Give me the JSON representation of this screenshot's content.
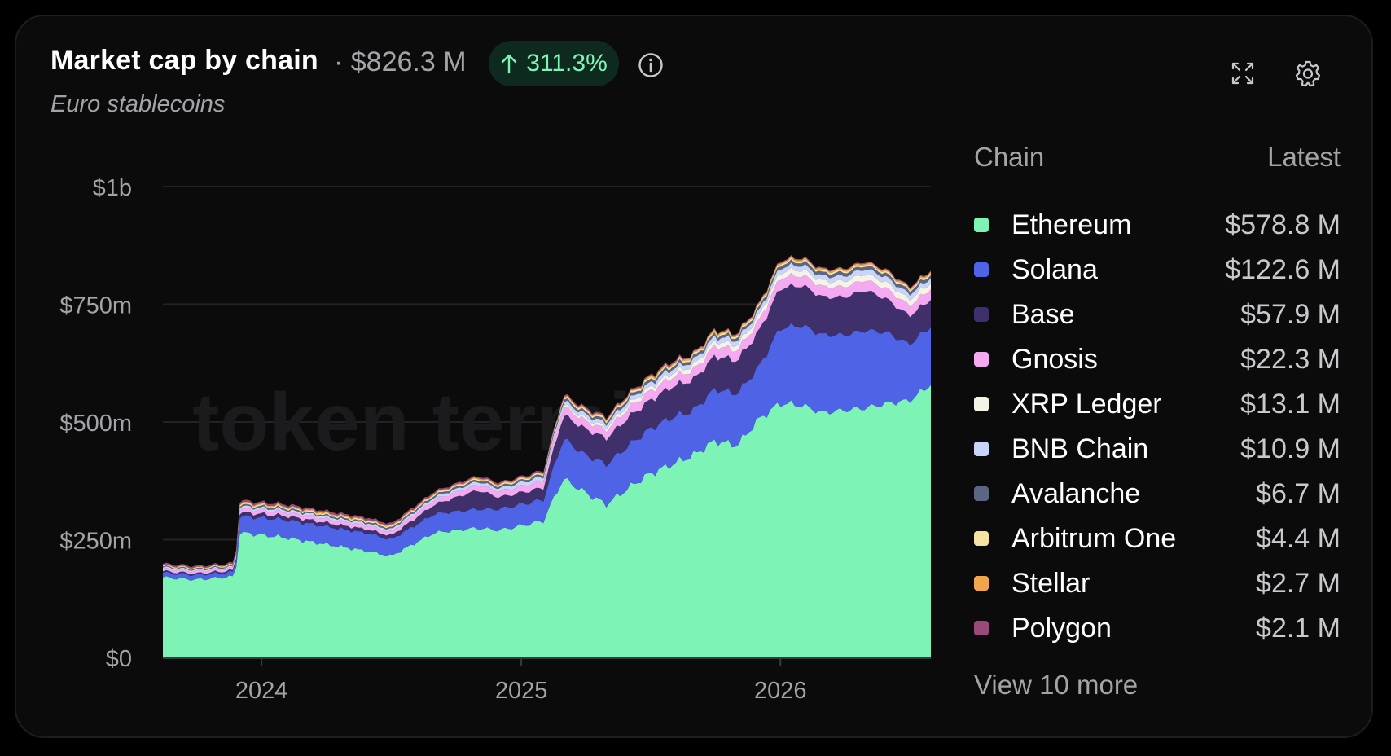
{
  "header": {
    "title": "Market cap by chain",
    "total": "· $826.3 M",
    "change": "311.3%",
    "subtitle": "Euro stablecoins",
    "watermark": "token terminal_"
  },
  "legend": {
    "col_chain": "Chain",
    "col_latest": "Latest",
    "view_more": "View 10 more",
    "items": [
      {
        "label": "Ethereum",
        "value": "$578.8 M",
        "color": "#7df3b6"
      },
      {
        "label": "Solana",
        "value": "$122.6 M",
        "color": "#4e63e6"
      },
      {
        "label": "Base",
        "value": "$57.9 M",
        "color": "#3f2f6b"
      },
      {
        "label": "Gnosis",
        "value": "$22.3 M",
        "color": "#f5a9f0"
      },
      {
        "label": "XRP Ledger",
        "value": "$13.1 M",
        "color": "#f5f2e6"
      },
      {
        "label": "BNB Chain",
        "value": "$10.9 M",
        "color": "#c9d4fa"
      },
      {
        "label": "Avalanche",
        "value": "$6.7 M",
        "color": "#5c6582"
      },
      {
        "label": "Arbitrum One",
        "value": "$4.4 M",
        "color": "#f5e3a0"
      },
      {
        "label": "Stellar",
        "value": "$2.7 M",
        "color": "#f2a64c"
      },
      {
        "label": "Polygon",
        "value": "$2.1 M",
        "color": "#9a4a7a"
      }
    ]
  },
  "icons": {
    "change": "arrow-up-icon",
    "info": "info-icon",
    "expand": "expand-icon",
    "settings": "gear-icon"
  },
  "chart_data": {
    "type": "area",
    "stacked": true,
    "y_ticks": [
      "$0",
      "$250m",
      "$500m",
      "$750m",
      "$1b"
    ],
    "ylim": [
      0,
      1000
    ],
    "y_unit": "$m",
    "x_ticks": [
      "2024",
      "2025",
      "2026"
    ],
    "xlim": [
      "2023-08-15",
      "2026-08-01"
    ],
    "grid": true,
    "x": [
      "2023-08-15",
      "2023-10-01",
      "2023-11-25",
      "2023-12-01",
      "2024-02-01",
      "2024-04-01",
      "2024-06-01",
      "2024-07-01",
      "2024-09-01",
      "2024-11-01",
      "2024-12-01",
      "2025-02-01",
      "2025-03-01",
      "2025-04-01",
      "2025-05-01",
      "2025-06-01",
      "2025-07-01",
      "2025-08-01",
      "2025-09-01",
      "2025-10-01",
      "2025-11-01",
      "2025-12-01",
      "2026-01-01",
      "2026-02-01",
      "2026-03-01",
      "2026-04-01",
      "2026-05-01",
      "2026-06-01",
      "2026-07-01",
      "2026-08-01"
    ],
    "series": [
      {
        "name": "Ethereum",
        "values": [
          170,
          165,
          172,
          265,
          255,
          240,
          225,
          215,
          265,
          275,
          270,
          290,
          380,
          350,
          325,
          360,
          390,
          410,
          430,
          460,
          450,
          505,
          540,
          535,
          520,
          525,
          530,
          540,
          545,
          578.8
        ]
      },
      {
        "name": "Solana",
        "values": [
          10,
          10,
          10,
          35,
          38,
          38,
          38,
          35,
          40,
          40,
          45,
          45,
          85,
          80,
          85,
          90,
          95,
          100,
          95,
          110,
          110,
          110,
          160,
          170,
          165,
          160,
          165,
          150,
          120,
          122.6
        ]
      },
      {
        "name": "Base",
        "values": [
          3,
          3,
          3,
          8,
          8,
          8,
          8,
          8,
          20,
          40,
          25,
          25,
          50,
          55,
          55,
          60,
          60,
          65,
          65,
          70,
          70,
          75,
          85,
          85,
          80,
          80,
          85,
          70,
          60,
          57.9
        ]
      },
      {
        "name": "Gnosis",
        "values": [
          5,
          5,
          5,
          8,
          8,
          8,
          8,
          8,
          10,
          12,
          12,
          14,
          18,
          18,
          18,
          20,
          20,
          20,
          20,
          22,
          22,
          22,
          22,
          22,
          22,
          22,
          22,
          22,
          22,
          22.3
        ]
      },
      {
        "name": "XRP Ledger",
        "values": [
          0,
          0,
          0,
          0,
          0,
          0,
          0,
          0,
          0,
          0,
          0,
          2,
          4,
          5,
          6,
          7,
          8,
          9,
          10,
          10,
          11,
          11,
          12,
          12,
          12,
          12,
          13,
          13,
          13,
          13.1
        ]
      },
      {
        "name": "BNB Chain",
        "values": [
          3,
          3,
          3,
          5,
          5,
          5,
          5,
          5,
          6,
          7,
          7,
          8,
          8,
          8,
          8,
          9,
          9,
          9,
          10,
          10,
          10,
          10,
          10,
          10,
          10,
          11,
          11,
          11,
          11,
          10.9
        ]
      },
      {
        "name": "Avalanche",
        "values": [
          2,
          2,
          2,
          3,
          3,
          3,
          3,
          3,
          4,
          4,
          4,
          5,
          5,
          5,
          5,
          6,
          6,
          6,
          6,
          6,
          6,
          6,
          7,
          7,
          7,
          7,
          7,
          7,
          7,
          6.7
        ]
      },
      {
        "name": "Arbitrum One",
        "values": [
          2,
          2,
          2,
          3,
          3,
          3,
          3,
          3,
          3,
          3,
          3,
          3,
          4,
          4,
          4,
          4,
          4,
          4,
          4,
          4,
          4,
          4,
          4,
          4,
          4,
          4,
          4,
          4,
          4,
          4.4
        ]
      },
      {
        "name": "Stellar",
        "values": [
          1,
          1,
          1,
          2,
          2,
          2,
          2,
          2,
          2,
          2,
          2,
          2,
          2,
          2,
          2,
          2,
          3,
          3,
          3,
          3,
          3,
          3,
          3,
          3,
          3,
          3,
          3,
          3,
          3,
          2.7
        ]
      },
      {
        "name": "Polygon",
        "values": [
          3,
          3,
          3,
          4,
          4,
          4,
          4,
          4,
          3,
          3,
          3,
          3,
          3,
          3,
          3,
          3,
          3,
          3,
          2,
          2,
          2,
          2,
          2,
          2,
          2,
          2,
          2,
          2,
          2,
          2.1
        ]
      }
    ]
  }
}
